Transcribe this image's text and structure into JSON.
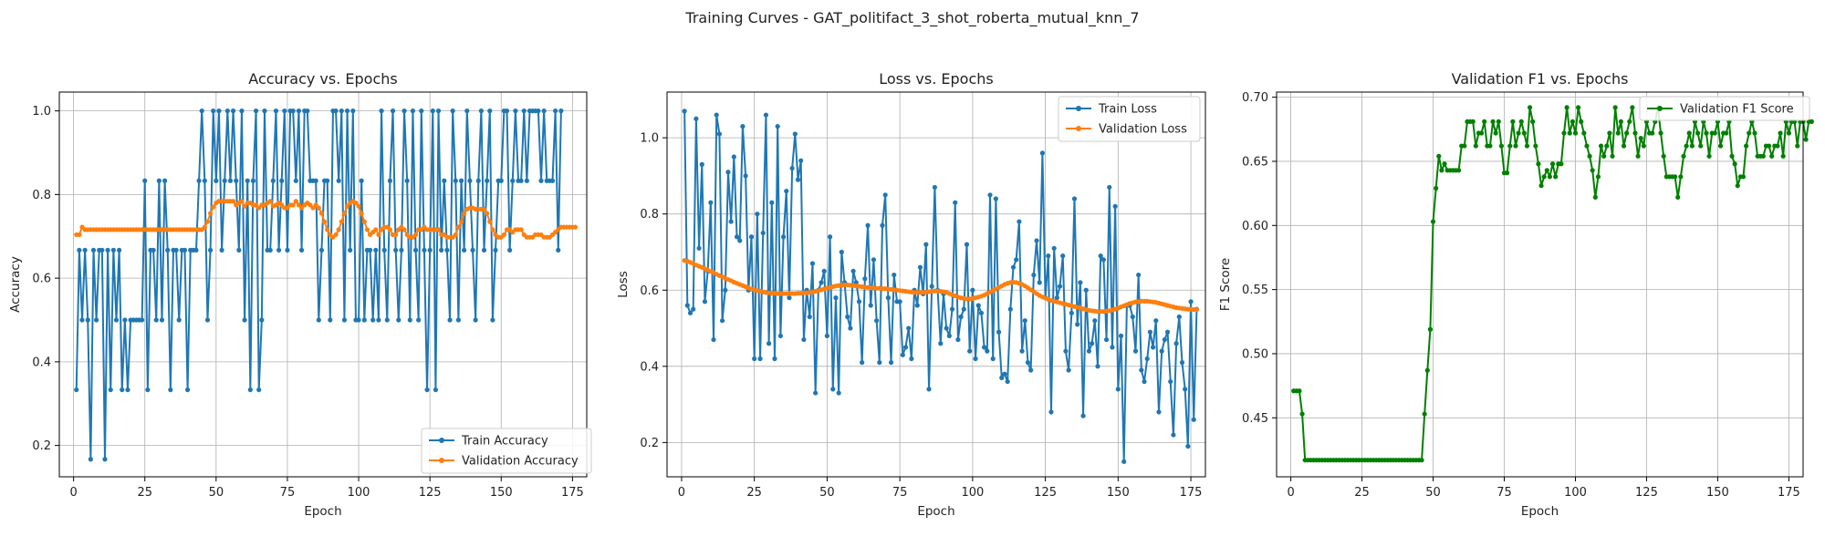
{
  "figure": {
    "title": "Training Curves - GAT_politifact_3_shot_roberta_mutual_knn_7"
  },
  "chart_data": [
    {
      "type": "line",
      "title": "Accuracy vs. Epochs",
      "xlabel": "Epoch",
      "ylabel": "Accuracy",
      "xlim": [
        -5,
        180
      ],
      "ylim": [
        0.125,
        1.045
      ],
      "xticks": [
        0,
        25,
        50,
        75,
        100,
        125,
        150,
        175
      ],
      "yticks": [
        0.2,
        0.4,
        0.6,
        0.8,
        1.0
      ],
      "yticks_label": [
        "0.2",
        "0.4",
        "0.6",
        "0.8",
        "1.0"
      ],
      "grid": true,
      "legend": "bottom-right",
      "series": [
        {
          "name": "Train Accuracy",
          "color": "#1f77b4",
          "x_start": 1,
          "values": [
            0.333,
            0.667,
            0.5,
            0.667,
            0.5,
            0.167,
            0.667,
            0.5,
            0.667,
            0.667,
            0.167,
            0.667,
            0.333,
            0.667,
            0.5,
            0.667,
            0.333,
            0.5,
            0.333,
            0.5,
            0.5,
            0.5,
            0.5,
            0.5,
            0.833,
            0.333,
            0.667,
            0.667,
            0.5,
            0.833,
            0.5,
            0.833,
            0.667,
            0.333,
            0.667,
            0.667,
            0.5,
            0.667,
            0.667,
            0.333,
            0.667,
            0.667,
            0.667,
            0.833,
            1.0,
            0.833,
            0.5,
            0.667,
            1.0,
            0.833,
            1.0,
            0.667,
            0.833,
            1.0,
            0.833,
            1.0,
            0.833,
            0.667,
            1.0,
            0.5,
            0.833,
            0.333,
            0.833,
            1.0,
            0.333,
            0.5,
            1.0,
            0.667,
            0.667,
            0.833,
            1.0,
            0.667,
            0.833,
            1.0,
            0.667,
            1.0,
            1.0,
            0.833,
            1.0,
            0.667,
            1.0,
            1.0,
            0.833,
            0.833,
            0.833,
            0.5,
            0.667,
            0.833,
            0.833,
            0.5,
            1.0,
            1.0,
            0.833,
            1.0,
            0.5,
            1.0,
            0.667,
            1.0,
            0.5,
            0.5,
            0.833,
            0.5,
            0.667,
            0.667,
            0.5,
            0.667,
            0.5,
            1.0,
            0.667,
            0.5,
            0.833,
            1.0,
            0.667,
            0.5,
            0.667,
            1.0,
            0.833,
            0.5,
            1.0,
            0.667,
            0.5,
            1.0,
            0.667,
            0.333,
            0.667,
            1.0,
            0.333,
            1.0,
            0.667,
            0.833,
            0.667,
            0.5,
            1.0,
            0.833,
            0.5,
            0.833,
            0.667,
            1.0,
            0.833,
            0.667,
            0.5,
            0.833,
            1.0,
            0.667,
            0.833,
            1.0,
            0.5,
            0.667,
            0.833,
            0.833,
            1.0,
            1.0,
            0.667,
            0.833,
            1.0,
            0.833,
            0.833,
            1.0,
            0.833,
            1.0,
            1.0,
            1.0,
            1.0,
            0.833,
            1.0,
            0.833,
            0.833,
            0.833,
            1.0,
            0.667,
            1.0
          ]
        },
        {
          "name": "Validation Accuracy",
          "color": "#ff7f0e",
          "x_start": 1,
          "values": [
            0.704,
            0.704,
            0.722,
            0.716,
            0.716,
            0.716,
            0.716,
            0.716,
            0.716,
            0.716,
            0.716,
            0.716,
            0.716,
            0.716,
            0.716,
            0.716,
            0.716,
            0.716,
            0.716,
            0.716,
            0.716,
            0.716,
            0.716,
            0.716,
            0.716,
            0.716,
            0.716,
            0.716,
            0.716,
            0.716,
            0.716,
            0.716,
            0.716,
            0.716,
            0.716,
            0.716,
            0.716,
            0.716,
            0.716,
            0.716,
            0.716,
            0.716,
            0.716,
            0.716,
            0.716,
            0.722,
            0.735,
            0.755,
            0.77,
            0.78,
            0.784,
            0.784,
            0.784,
            0.784,
            0.784,
            0.784,
            0.775,
            0.78,
            0.784,
            0.772,
            0.78,
            0.78,
            0.775,
            0.775,
            0.768,
            0.775,
            0.775,
            0.78,
            0.784,
            0.772,
            0.775,
            0.78,
            0.775,
            0.768,
            0.768,
            0.775,
            0.775,
            0.784,
            0.775,
            0.768,
            0.775,
            0.78,
            0.775,
            0.768,
            0.775,
            0.768,
            0.755,
            0.735,
            0.716,
            0.704,
            0.698,
            0.704,
            0.716,
            0.735,
            0.755,
            0.772,
            0.78,
            0.784,
            0.78,
            0.772,
            0.755,
            0.735,
            0.716,
            0.704,
            0.71,
            0.716,
            0.704,
            0.716,
            0.722,
            0.722,
            0.716,
            0.704,
            0.704,
            0.716,
            0.722,
            0.716,
            0.704,
            0.698,
            0.698,
            0.704,
            0.716,
            0.716,
            0.722,
            0.716,
            0.716,
            0.716,
            0.716,
            0.716,
            0.704,
            0.704,
            0.698,
            0.698,
            0.698,
            0.704,
            0.722,
            0.735,
            0.755,
            0.765,
            0.768,
            0.768,
            0.765,
            0.765,
            0.765,
            0.765,
            0.755,
            0.735,
            0.716,
            0.704,
            0.698,
            0.698,
            0.704,
            0.716,
            0.716,
            0.71,
            0.716,
            0.716,
            0.716,
            0.704,
            0.698,
            0.698,
            0.698,
            0.704,
            0.704,
            0.704,
            0.698,
            0.698,
            0.698,
            0.704,
            0.71,
            0.716,
            0.722,
            0.722,
            0.722,
            0.722,
            0.722,
            0.722
          ]
        }
      ]
    },
    {
      "type": "line",
      "title": "Loss vs. Epochs",
      "xlabel": "Epoch",
      "ylabel": "Loss",
      "xlim": [
        -5,
        180
      ],
      "ylim": [
        0.11,
        1.12
      ],
      "xticks": [
        0,
        25,
        50,
        75,
        100,
        125,
        150,
        175
      ],
      "yticks": [
        0.2,
        0.4,
        0.6,
        0.8,
        1.0
      ],
      "yticks_label": [
        "0.2",
        "0.4",
        "0.6",
        "0.8",
        "1.0"
      ],
      "grid": true,
      "legend": "top-right",
      "series": [
        {
          "name": "Train Loss",
          "color": "#1f77b4",
          "x_start": 1,
          "values": [
            1.07,
            0.56,
            0.54,
            0.55,
            1.05,
            0.71,
            0.93,
            0.57,
            0.65,
            0.83,
            0.47,
            1.06,
            1.01,
            0.52,
            0.6,
            0.91,
            0.78,
            0.95,
            0.74,
            0.73,
            1.03,
            0.9,
            0.6,
            0.74,
            0.42,
            0.8,
            0.42,
            0.75,
            1.06,
            0.46,
            0.83,
            0.42,
            1.03,
            0.48,
            0.74,
            0.86,
            0.58,
            0.92,
            1.01,
            0.89,
            0.94,
            0.47,
            0.6,
            0.53,
            0.67,
            0.33,
            0.6,
            0.62,
            0.65,
            0.48,
            0.74,
            0.34,
            0.58,
            0.33,
            0.7,
            0.62,
            0.53,
            0.5,
            0.65,
            0.62,
            0.57,
            0.41,
            0.63,
            0.77,
            0.56,
            0.68,
            0.52,
            0.41,
            0.77,
            0.85,
            0.58,
            0.41,
            0.64,
            0.57,
            0.57,
            0.43,
            0.45,
            0.5,
            0.42,
            0.6,
            0.56,
            0.66,
            0.59,
            0.72,
            0.34,
            0.61,
            0.87,
            0.6,
            0.46,
            0.59,
            0.5,
            0.48,
            0.55,
            0.83,
            0.47,
            0.53,
            0.55,
            0.72,
            0.44,
            0.6,
            0.42,
            0.56,
            0.54,
            0.45,
            0.44,
            0.85,
            0.42,
            0.84,
            0.49,
            0.37,
            0.38,
            0.36,
            0.55,
            0.66,
            0.68,
            0.78,
            0.44,
            0.52,
            0.41,
            0.39,
            0.64,
            0.73,
            0.62,
            0.96,
            0.58,
            0.69,
            0.28,
            0.71,
            0.58,
            0.61,
            0.69,
            0.44,
            0.39,
            0.54,
            0.84,
            0.51,
            0.62,
            0.27,
            0.6,
            0.44,
            0.46,
            0.52,
            0.4,
            0.69,
            0.68,
            0.47,
            0.87,
            0.45,
            0.82,
            0.34,
            0.48,
            0.15,
            0.56,
            0.56,
            0.53,
            0.44,
            0.64,
            0.39,
            0.36,
            0.42,
            0.49,
            0.45,
            0.52,
            0.28,
            0.44,
            0.47,
            0.49,
            0.36,
            0.22,
            0.46,
            0.53,
            0.41,
            0.34,
            0.19,
            0.57,
            0.26,
            0.55
          ]
        },
        {
          "name": "Validation Loss",
          "color": "#ff7f0e",
          "x_start": 1,
          "values": [
            0.678,
            0.676,
            0.673,
            0.67,
            0.666,
            0.663,
            0.66,
            0.656,
            0.653,
            0.649,
            0.646,
            0.642,
            0.638,
            0.635,
            0.631,
            0.628,
            0.625,
            0.621,
            0.618,
            0.615,
            0.612,
            0.609,
            0.606,
            0.603,
            0.601,
            0.599,
            0.597,
            0.595,
            0.594,
            0.593,
            0.592,
            0.592,
            0.591,
            0.591,
            0.591,
            0.591,
            0.591,
            0.591,
            0.591,
            0.592,
            0.592,
            0.593,
            0.593,
            0.594,
            0.595,
            0.597,
            0.599,
            0.601,
            0.603,
            0.605,
            0.607,
            0.609,
            0.611,
            0.612,
            0.613,
            0.614,
            0.614,
            0.613,
            0.612,
            0.611,
            0.61,
            0.609,
            0.608,
            0.607,
            0.606,
            0.606,
            0.605,
            0.605,
            0.604,
            0.604,
            0.603,
            0.602,
            0.601,
            0.6,
            0.599,
            0.598,
            0.597,
            0.596,
            0.595,
            0.594,
            0.594,
            0.594,
            0.594,
            0.595,
            0.596,
            0.597,
            0.598,
            0.598,
            0.597,
            0.596,
            0.594,
            0.591,
            0.588,
            0.585,
            0.582,
            0.58,
            0.578,
            0.577,
            0.577,
            0.578,
            0.58,
            0.582,
            0.584,
            0.587,
            0.591,
            0.595,
            0.599,
            0.603,
            0.607,
            0.611,
            0.615,
            0.618,
            0.62,
            0.621,
            0.62,
            0.618,
            0.615,
            0.611,
            0.606,
            0.601,
            0.596,
            0.591,
            0.586,
            0.582,
            0.579,
            0.576,
            0.573,
            0.571,
            0.569,
            0.567,
            0.565,
            0.563,
            0.561,
            0.559,
            0.557,
            0.555,
            0.553,
            0.551,
            0.549,
            0.547,
            0.546,
            0.545,
            0.544,
            0.544,
            0.544,
            0.545,
            0.546,
            0.548,
            0.55,
            0.553,
            0.556,
            0.559,
            0.562,
            0.565,
            0.567,
            0.569,
            0.57,
            0.571,
            0.571,
            0.571,
            0.57,
            0.569,
            0.568,
            0.566,
            0.564,
            0.562,
            0.56,
            0.558,
            0.556,
            0.554,
            0.553,
            0.552,
            0.551,
            0.55,
            0.55,
            0.549,
            0.549
          ]
        }
      ]
    },
    {
      "type": "line",
      "title": "Validation F1 vs. Epochs",
      "xlabel": "Epoch",
      "ylabel": "F1 Score",
      "xlim": [
        -5,
        180
      ],
      "ylim": [
        0.404,
        0.704
      ],
      "xticks": [
        0,
        25,
        50,
        75,
        100,
        125,
        150,
        175
      ],
      "yticks": [
        0.45,
        0.5,
        0.55,
        0.6,
        0.65,
        0.7
      ],
      "yticks_label": [
        "0.45",
        "0.50",
        "0.55",
        "0.60",
        "0.65",
        "0.70"
      ],
      "grid": true,
      "legend": "top-right",
      "series": [
        {
          "name": "Validation F1 Score",
          "color": "#008000",
          "x_start": 1,
          "values": [
            0.471,
            0.471,
            0.471,
            0.453,
            0.417,
            0.417,
            0.417,
            0.417,
            0.417,
            0.417,
            0.417,
            0.417,
            0.417,
            0.417,
            0.417,
            0.417,
            0.417,
            0.417,
            0.417,
            0.417,
            0.417,
            0.417,
            0.417,
            0.417,
            0.417,
            0.417,
            0.417,
            0.417,
            0.417,
            0.417,
            0.417,
            0.417,
            0.417,
            0.417,
            0.417,
            0.417,
            0.417,
            0.417,
            0.417,
            0.417,
            0.417,
            0.417,
            0.417,
            0.417,
            0.417,
            0.417,
            0.453,
            0.487,
            0.519,
            0.603,
            0.629,
            0.654,
            0.643,
            0.648,
            0.643,
            0.643,
            0.643,
            0.643,
            0.643,
            0.662,
            0.662,
            0.681,
            0.681,
            0.681,
            0.662,
            0.672,
            0.672,
            0.681,
            0.662,
            0.662,
            0.681,
            0.672,
            0.681,
            0.662,
            0.641,
            0.641,
            0.662,
            0.681,
            0.662,
            0.672,
            0.681,
            0.672,
            0.662,
            0.692,
            0.681,
            0.662,
            0.648,
            0.631,
            0.638,
            0.643,
            0.638,
            0.648,
            0.638,
            0.648,
            0.648,
            0.672,
            0.692,
            0.672,
            0.681,
            0.672,
            0.692,
            0.681,
            0.672,
            0.662,
            0.654,
            0.643,
            0.622,
            0.638,
            0.662,
            0.654,
            0.662,
            0.672,
            0.654,
            0.692,
            0.672,
            0.681,
            0.662,
            0.672,
            0.681,
            0.692,
            0.672,
            0.654,
            0.668,
            0.662,
            0.681,
            0.672,
            0.672,
            0.681,
            0.692,
            0.672,
            0.654,
            0.638,
            0.638,
            0.638,
            0.638,
            0.622,
            0.638,
            0.654,
            0.662,
            0.672,
            0.662,
            0.681,
            0.672,
            0.662,
            0.681,
            0.672,
            0.654,
            0.672,
            0.672,
            0.681,
            0.662,
            0.672,
            0.672,
            0.681,
            0.654,
            0.648,
            0.631,
            0.638,
            0.638,
            0.662,
            0.672,
            0.681,
            0.672,
            0.654,
            0.654,
            0.654,
            0.662,
            0.662,
            0.654,
            0.662,
            0.662,
            0.672,
            0.654,
            0.681,
            0.672,
            0.681,
            0.681,
            0.662,
            0.681,
            0.681,
            0.667,
            0.681,
            0.681
          ]
        }
      ]
    }
  ]
}
